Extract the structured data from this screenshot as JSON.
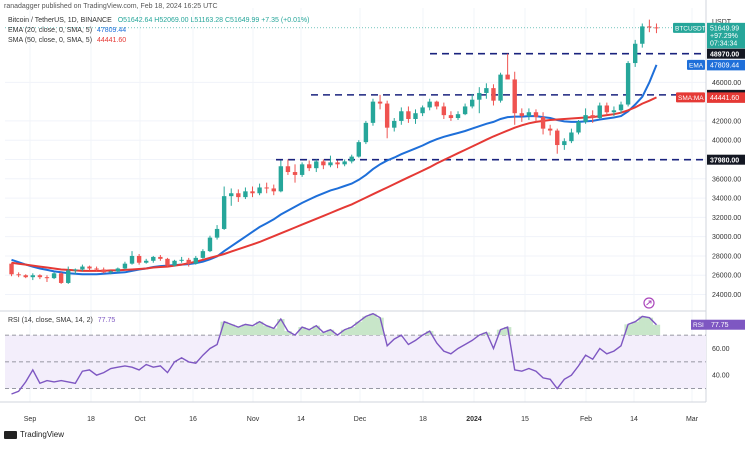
{
  "header": {
    "credit": "ranadagger published on TradingView.com, Feb 18, 2024 16:25 UTC",
    "symbol_line": "Bitcoin / TetherUS, 1D, BINANCE",
    "ohlc": "O51642.64  H52069.00  L51163.28  C51649.99  +7.35 (+0.01%)",
    "ema_label": "EMA (20, close, 0, SMA, 5)",
    "ema_value": "47809.44",
    "sma_label": "SMA (50, close, 0, SMA, 5)",
    "sma_value": "44441.60",
    "rsi_label": "RSI (14, close, SMA, 14, 2)",
    "rsi_value": "77.75"
  },
  "footer": {
    "brand": "TradingView"
  },
  "colors": {
    "up": "#26a69a",
    "down": "#ef5350",
    "ema": "#1e6fd9",
    "sma": "#e53935",
    "rsi": "#7e57c2",
    "level": "#1a237e"
  },
  "chart_data": [
    {
      "type": "candlestick",
      "title": "",
      "y_axis_title": "USDT",
      "price_ticks": [
        24000,
        26000,
        28000,
        30000,
        32000,
        34000,
        36000,
        38000,
        40000,
        42000,
        46000
      ],
      "x_ticks": [
        "Sep",
        "18",
        "Oct",
        "16",
        "Nov",
        "14",
        "Dec",
        "18",
        "2024",
        "15",
        "Feb",
        "14",
        "Mar"
      ],
      "ylim": [
        22500,
        53500
      ],
      "horizontal_levels": [
        {
          "label": "48970.00",
          "value": 48970
        },
        {
          "label": "44700.00",
          "value": 44700
        },
        {
          "label": "37980.00",
          "value": 37980
        }
      ],
      "price_tags": [
        {
          "name": "BTCUSDT",
          "value": 51649.99,
          "label": "BTCUSDT",
          "lines": [
            "51649.99",
            "+97.29%",
            "07:34:34"
          ]
        },
        {
          "name": "EMA",
          "value": 47809.44,
          "label": "EMA",
          "lines": [
            "47809.44"
          ]
        },
        {
          "name": "SMA:MA",
          "value": 44441.6,
          "label": "SMA:MA",
          "lines": [
            "44441.60"
          ]
        }
      ],
      "ohlc": [
        [
          27200,
          27300,
          25900,
          26100
        ],
        [
          26100,
          26300,
          25800,
          26000
        ],
        [
          26000,
          26100,
          25700,
          25800
        ],
        [
          25800,
          26200,
          25500,
          26000
        ],
        [
          26000,
          26100,
          25600,
          25800
        ],
        [
          25800,
          26000,
          25300,
          25700
        ],
        [
          25700,
          26300,
          25600,
          26200
        ],
        [
          26200,
          26300,
          25100,
          25200
        ],
        [
          25200,
          26900,
          25100,
          26500
        ],
        [
          26500,
          26700,
          26100,
          26600
        ],
        [
          26600,
          27100,
          26400,
          26900
        ],
        [
          26900,
          27000,
          26500,
          26700
        ],
        [
          26700,
          26900,
          26400,
          26600
        ],
        [
          26600,
          26800,
          26200,
          26300
        ],
        [
          26300,
          26500,
          26100,
          26400
        ],
        [
          26400,
          26800,
          26300,
          26700
        ],
        [
          26700,
          27400,
          26600,
          27200
        ],
        [
          27200,
          28500,
          27100,
          28000
        ],
        [
          28000,
          28200,
          27100,
          27300
        ],
        [
          27300,
          27700,
          27200,
          27500
        ],
        [
          27500,
          28000,
          27300,
          27900
        ],
        [
          27900,
          28100,
          27500,
          27700
        ],
        [
          27700,
          27800,
          26900,
          27000
        ],
        [
          27000,
          27600,
          26900,
          27500
        ],
        [
          27500,
          27900,
          27300,
          27600
        ],
        [
          27600,
          27800,
          26900,
          27200
        ],
        [
          27200,
          28000,
          27100,
          27800
        ],
        [
          27800,
          28700,
          27700,
          28500
        ],
        [
          28500,
          30100,
          28400,
          29900
        ],
        [
          29900,
          31200,
          29700,
          30800
        ],
        [
          30800,
          35200,
          30700,
          34200
        ],
        [
          34200,
          35000,
          33200,
          34500
        ],
        [
          34500,
          34900,
          33600,
          34100
        ],
        [
          34100,
          35100,
          33900,
          34700
        ],
        [
          34700,
          35200,
          34100,
          34500
        ],
        [
          34500,
          35500,
          34300,
          35100
        ],
        [
          35100,
          35600,
          34500,
          35000
        ],
        [
          35000,
          35400,
          34300,
          34700
        ],
        [
          34700,
          37900,
          34600,
          37300
        ],
        [
          37300,
          38000,
          36400,
          36700
        ],
        [
          36700,
          37500,
          35600,
          36400
        ],
        [
          36400,
          37700,
          36200,
          37500
        ],
        [
          37500,
          37900,
          36800,
          37100
        ],
        [
          37100,
          38000,
          36700,
          37800
        ],
        [
          37800,
          38000,
          37000,
          37400
        ],
        [
          37400,
          38400,
          37200,
          37700
        ],
        [
          37700,
          37900,
          37100,
          37500
        ],
        [
          37500,
          38000,
          37300,
          37800
        ],
        [
          37800,
          38500,
          37600,
          38300
        ],
        [
          38300,
          40000,
          38200,
          39800
        ],
        [
          39800,
          42000,
          39600,
          41800
        ],
        [
          41800,
          44300,
          41500,
          44000
        ],
        [
          44000,
          44700,
          43200,
          43800
        ],
        [
          43800,
          44100,
          40200,
          41300
        ],
        [
          41300,
          42300,
          40900,
          42000
        ],
        [
          42000,
          43400,
          41600,
          43000
        ],
        [
          43000,
          43500,
          41800,
          42200
        ],
        [
          42200,
          43200,
          41700,
          42800
        ],
        [
          42800,
          43600,
          42500,
          43400
        ],
        [
          43400,
          44300,
          43100,
          44000
        ],
        [
          44000,
          44100,
          43200,
          43500
        ],
        [
          43500,
          43900,
          42200,
          42600
        ],
        [
          42600,
          43000,
          42000,
          42300
        ],
        [
          42300,
          43000,
          42100,
          42700
        ],
        [
          42700,
          43800,
          42600,
          43500
        ],
        [
          43500,
          44800,
          43300,
          44200
        ],
        [
          44200,
          45500,
          42800,
          44900
        ],
        [
          44900,
          45900,
          44300,
          45400
        ],
        [
          45400,
          45800,
          43600,
          44100
        ],
        [
          44100,
          47000,
          43900,
          46800
        ],
        [
          46800,
          48970,
          46400,
          46300
        ],
        [
          46300,
          47100,
          41600,
          42800
        ],
        [
          42800,
          43300,
          41900,
          42500
        ],
        [
          42500,
          43300,
          42100,
          42900
        ],
        [
          42900,
          43200,
          41900,
          42400
        ],
        [
          42400,
          42900,
          40600,
          41200
        ],
        [
          41200,
          41600,
          40500,
          41000
        ],
        [
          41000,
          41200,
          38600,
          39500
        ],
        [
          39500,
          40200,
          39000,
          39900
        ],
        [
          39900,
          41200,
          39700,
          40800
        ],
        [
          40800,
          42100,
          40600,
          41900
        ],
        [
          41900,
          43300,
          41700,
          42600
        ],
        [
          42600,
          43100,
          41800,
          42300
        ],
        [
          42300,
          43900,
          42200,
          43600
        ],
        [
          43600,
          43900,
          42600,
          42900
        ],
        [
          42900,
          43500,
          42500,
          43100
        ],
        [
          43100,
          44000,
          42800,
          43700
        ],
        [
          43700,
          48200,
          43500,
          48000
        ],
        [
          48000,
          50400,
          47600,
          50000
        ],
        [
          50000,
          52100,
          49600,
          51800
        ],
        [
          51800,
          52500,
          51200,
          51700
        ],
        [
          51700,
          52100,
          51100,
          51649.99
        ]
      ],
      "series": [
        {
          "name": "EMA",
          "values": [
            27600,
            27350,
            27100,
            26900,
            26700,
            26550,
            26400,
            26300,
            26200,
            26150,
            26100,
            26100,
            26100,
            26150,
            26200,
            26250,
            26300,
            26450,
            26600,
            26700,
            26850,
            26950,
            27000,
            27050,
            27100,
            27150,
            27250,
            27400,
            27650,
            27950,
            28500,
            29000,
            29500,
            30000,
            30500,
            31000,
            31400,
            31800,
            32300,
            32700,
            33100,
            33500,
            33850,
            34200,
            34500,
            34800,
            35000,
            35250,
            35500,
            35900,
            36400,
            37000,
            37500,
            37900,
            38200,
            38550,
            38850,
            39150,
            39450,
            39800,
            40100,
            40350,
            40550,
            40750,
            40950,
            41200,
            41450,
            41700,
            41900,
            42200,
            42400,
            42450,
            42450,
            42500,
            42500,
            42400,
            42300,
            42100,
            41950,
            41900,
            41900,
            41950,
            42000,
            42150,
            42250,
            42350,
            42500,
            43000,
            43700,
            44500,
            46000,
            47809.44
          ]
        },
        {
          "name": "SMA:MA",
          "values": [
            27300,
            27200,
            27100,
            27000,
            26900,
            26800,
            26700,
            26600,
            26550,
            26500,
            26450,
            26450,
            26450,
            26450,
            26500,
            26500,
            26550,
            26600,
            26650,
            26700,
            26800,
            26850,
            26900,
            27000,
            27100,
            27250,
            27400,
            27600,
            27800,
            28000,
            28200,
            28450,
            28700,
            28950,
            29200,
            29450,
            29750,
            30050,
            30350,
            30650,
            30950,
            31250,
            31550,
            31850,
            32150,
            32450,
            32750,
            33050,
            33350,
            33700,
            34050,
            34400,
            34750,
            35100,
            35450,
            35800,
            36150,
            36500,
            36850,
            37200,
            37600,
            37950,
            38300,
            38650,
            39000,
            39350,
            39700,
            40050,
            40400,
            40700,
            41000,
            41300,
            41550,
            41750,
            41900,
            42000,
            42100,
            42150,
            42200,
            42250,
            42300,
            42350,
            42400,
            42500,
            42600,
            42700,
            42850,
            43100,
            43400,
            43800,
            44100,
            44441.6
          ]
        }
      ]
    },
    {
      "type": "line",
      "title": "",
      "name": "RSI",
      "ylim": [
        20,
        88
      ],
      "y_ticks": [
        40.0,
        60.0
      ],
      "bands": [
        70,
        50,
        30
      ],
      "values": [
        26,
        28,
        35,
        44,
        34,
        36,
        35,
        36,
        35,
        34,
        43,
        44,
        40,
        42,
        45,
        46,
        47,
        46,
        44,
        48,
        46,
        47,
        42,
        50,
        53,
        50,
        49,
        55,
        60,
        63,
        80,
        78,
        76,
        78,
        77,
        80,
        77,
        75,
        82,
        73,
        70,
        76,
        74,
        77,
        72,
        74,
        70,
        74,
        76,
        80,
        84,
        86,
        83,
        62,
        67,
        70,
        63,
        66,
        70,
        73,
        64,
        58,
        56,
        60,
        63,
        66,
        70,
        72,
        60,
        74,
        76,
        44,
        43,
        45,
        43,
        38,
        37,
        30,
        37,
        40,
        47,
        55,
        52,
        60,
        56,
        58,
        62,
        78,
        80,
        84,
        83,
        77.75
      ]
    }
  ]
}
